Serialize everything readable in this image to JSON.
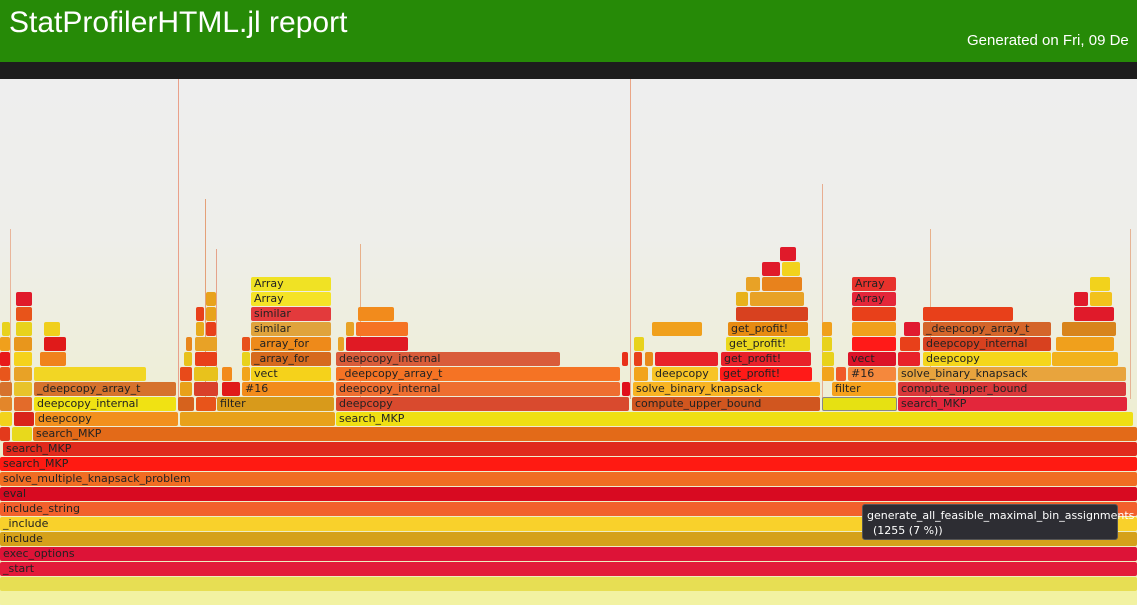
{
  "header": {
    "title": "StatProfilerHTML.jl report",
    "generated": "Generated on Fri, 09 De"
  },
  "tooltip": {
    "name": "generate_all_feasible_maximal_bin_assignments",
    "detail": "(1255 (7 %))"
  },
  "frames": [
    {
      "label": "_start",
      "color": "#e31b3a"
    },
    {
      "label": "exec_options",
      "color": "#dd1337"
    },
    {
      "label": "include",
      "color": "#d5a11a"
    },
    {
      "label": "_include",
      "color": "#f9d12b"
    },
    {
      "label": "include_string",
      "color": "#f2602c"
    },
    {
      "label": "eval",
      "color": "#d80a21"
    },
    {
      "label": "solve_multiple_knapsack_problem",
      "color": "#f06d22"
    },
    {
      "label": "search_MKP",
      "color": "#ff1a12"
    },
    {
      "label": "search_MKP",
      "color": "#e02a1c"
    },
    {
      "label": "search_MKP",
      "color": "#e36a18"
    },
    {
      "label": "deepcopy",
      "color": "#f2901d"
    },
    {
      "label": "search_MKP",
      "color": "#efdf13"
    },
    {
      "label": "deepcopy_internal",
      "color": "#f0e213"
    },
    {
      "label": "filter",
      "color": "#d89a1b"
    },
    {
      "label": "deepcopy",
      "color": "#d94a2e"
    },
    {
      "label": "compute_upper_bound",
      "color": "#d1561f"
    },
    {
      "label": "search_MKP",
      "color": "#e3263b"
    },
    {
      "label": "_deepcopy_array_t",
      "color": "#d6722d"
    },
    {
      "label": "#16",
      "color": "#f28b1c"
    },
    {
      "label": "deepcopy_internal",
      "color": "#ee6e30"
    },
    {
      "label": "solve_binary_knapsack",
      "color": "#f8b423"
    },
    {
      "label": "filter",
      "color": "#f5a11c"
    },
    {
      "label": "compute_upper_bound",
      "color": "#d9383a"
    },
    {
      "label": "vect",
      "color": "#f5d21b"
    },
    {
      "label": "_deepcopy_array_t",
      "color": "#f57324"
    },
    {
      "label": "deepcopy",
      "color": "#f8c425"
    },
    {
      "label": "get_profit!",
      "color": "#ff1a18"
    },
    {
      "label": "#16",
      "color": "#f5883c"
    },
    {
      "label": "solve_binary_knapsack",
      "color": "#e8a43d"
    },
    {
      "label": "_array_for",
      "color": "#d66a1e"
    },
    {
      "label": "deepcopy_internal",
      "color": "#d95c3a"
    },
    {
      "label": "get_profit!",
      "color": "#e8222a"
    },
    {
      "label": "vect",
      "color": "#dc1428"
    },
    {
      "label": "deepcopy",
      "color": "#f5d61b"
    },
    {
      "label": "_array_for",
      "color": "#ee8a1a"
    },
    {
      "label": "get_profit!",
      "color": "#ebd81d"
    },
    {
      "label": "deepcopy_internal",
      "color": "#d8411f"
    },
    {
      "label": "similar",
      "color": "#e0a33c"
    },
    {
      "label": "get_profit!",
      "color": "#e78b12"
    },
    {
      "label": "_deepcopy_array_t",
      "color": "#d4652a"
    },
    {
      "label": "similar",
      "color": "#e33a3c"
    },
    {
      "label": "Array",
      "color": "#f0e224"
    },
    {
      "label": "Array",
      "color": "#f5e327"
    },
    {
      "label": "Array",
      "color": "#e8322c"
    },
    {
      "label": "Array",
      "color": "#e4263a"
    }
  ]
}
